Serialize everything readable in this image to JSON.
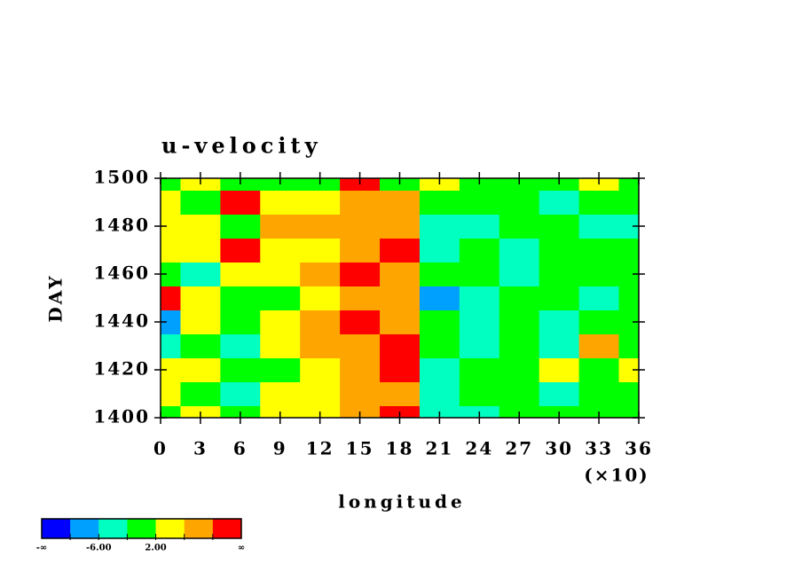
{
  "chart_data": {
    "type": "contour",
    "title": "u-velocity",
    "x_label": "longitude",
    "x_multiplier_label": "(×10)",
    "y_label": "DAY",
    "x": [
      0,
      3,
      6,
      9,
      12,
      15,
      18,
      21,
      24,
      27,
      30,
      33,
      36
    ],
    "y": [
      1400,
      1410,
      1420,
      1430,
      1440,
      1450,
      1460,
      1470,
      1480,
      1490,
      1500
    ],
    "z": [
      [
        1,
        3,
        0,
        5,
        2,
        8,
        11,
        -3,
        -5,
        -2,
        0,
        -1,
        1
      ],
      [
        3,
        0,
        -3,
        4,
        3,
        7,
        8,
        -4,
        -2,
        1,
        -3,
        -1,
        0
      ],
      [
        2,
        4,
        1,
        -2,
        5,
        9,
        11,
        -3,
        0,
        -2,
        4,
        -1,
        2
      ],
      [
        -3,
        1,
        -6,
        3,
        7,
        8,
        10,
        -2,
        -4,
        1,
        -3,
        6,
        -1
      ],
      [
        -7,
        2,
        0,
        4,
        8,
        11,
        9,
        -1,
        -3,
        -2,
        -5,
        0,
        -2
      ],
      [
        11,
        3,
        1,
        0,
        5,
        9,
        8,
        -8,
        -3,
        -1,
        0,
        -3,
        1
      ],
      [
        0,
        -3,
        2,
        4,
        7,
        10,
        6,
        -2,
        0,
        -3,
        -1,
        1,
        -2
      ],
      [
        3,
        2,
        11,
        5,
        3,
        8,
        11,
        -4,
        -1,
        -3,
        0,
        -2,
        -1
      ],
      [
        2,
        4,
        1,
        7,
        6,
        9,
        7,
        -3,
        -5,
        -1,
        -2,
        -4,
        -3
      ],
      [
        4,
        1,
        11,
        3,
        2,
        7,
        8,
        -1,
        0,
        -2,
        -3,
        -1,
        0
      ],
      [
        1,
        2,
        0,
        1,
        0,
        12,
        -2,
        3,
        0,
        1,
        -1,
        3,
        0
      ]
    ],
    "xlim": [
      0,
      36
    ],
    "xticks": [
      0,
      3,
      6,
      9,
      12,
      15,
      18,
      21,
      24,
      27,
      30,
      33,
      36
    ],
    "ylim": [
      1400,
      1500
    ],
    "yticks": [
      1400,
      1420,
      1440,
      1460,
      1480,
      1500
    ],
    "colorbar": {
      "levels": [
        -10,
        -6,
        -2,
        2,
        6,
        10
      ],
      "colors": [
        "#0000ff",
        "#00a0ff",
        "#00ffc0",
        "#00ff00",
        "#ffff00",
        "#ffa500",
        "#ff0000"
      ],
      "ticks": [
        {
          "value": -6,
          "label": "-6.00"
        },
        {
          "value": 2,
          "label": "2.00"
        }
      ],
      "end_labels": [
        "-∞",
        "∞"
      ]
    }
  }
}
